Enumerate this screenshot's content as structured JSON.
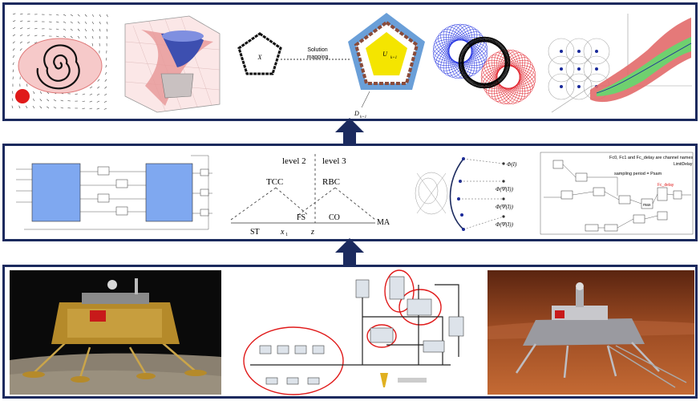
{
  "colors": {
    "frame": "#1b2a5e",
    "arrow": "#1b2a5e",
    "highlight_red": "#e01a1a",
    "pentagon_fill": "#f4e500",
    "pentagon_bg": "#6a9fd8",
    "block_blue": "#7fa8f0",
    "funnel_red": "#e26a6a",
    "funnel_green": "#6fd06f"
  },
  "top_panel": {
    "mapping_text_1": "Solution",
    "mapping_text_2": "mapping",
    "pentagon_left_label": "X",
    "pentagon_right_label": "U",
    "pentagon_right_sub": "k+1",
    "bottom_label": "D",
    "bottom_sub": "k+1"
  },
  "middle_panel": {
    "level2": "level 2",
    "level3": "level 3",
    "tcc": "TCC",
    "rbc": "RBC",
    "fs": "FS",
    "co": "CO",
    "st": "ST",
    "x1": "x",
    "x1_sub": "1",
    "z": "z",
    "ma": "MA",
    "phi": [
      "Φ(I)",
      "Φ(Ψ(I))",
      "Φ(Ψ(I))",
      "Φ(Ψ(I))"
    ],
    "blk_labels": {
      "fc1": "Fc0, Fc1 and Fc_delay are channel names",
      "sampling": "sampling period = Psam",
      "fcdelay": "Fc_delay",
      "limdelay": "LimitDelay",
      "max": "max",
      "ms": "Pattern"
    }
  },
  "bottom_panel": {
    "photo_left": "lunar lander on the moon",
    "photo_right": "mars lander on the surface",
    "network_diagram": "network architecture"
  }
}
